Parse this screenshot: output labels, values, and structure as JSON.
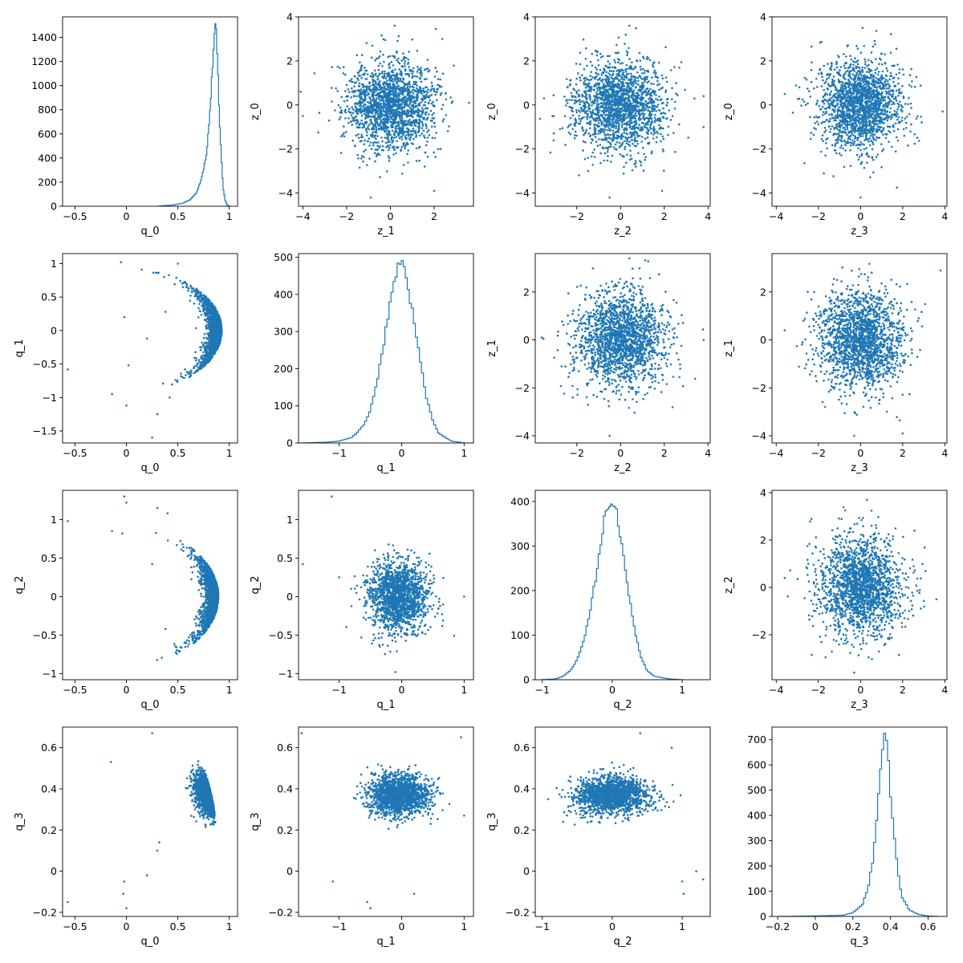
{
  "chart_data": [
    {
      "type": "histogram",
      "row": 0,
      "col": 0,
      "xlabel": "q_0",
      "ylabel": "",
      "xlim": [
        -0.62,
        1.08
      ],
      "ylim": [
        0,
        1570
      ],
      "xticks": [
        -0.5,
        0.0,
        0.5,
        1.0
      ],
      "yticks": [
        0,
        200,
        400,
        600,
        800,
        1000,
        1200,
        1400
      ],
      "hist": {
        "x": [
          0.3,
          0.45,
          0.55,
          0.62,
          0.68,
          0.72,
          0.75,
          0.78,
          0.8,
          0.82,
          0.84,
          0.86,
          0.87,
          0.88,
          0.89,
          0.9,
          0.92,
          0.94,
          0.96,
          0.98,
          1.0
        ],
        "y": [
          0,
          10,
          25,
          55,
          110,
          200,
          300,
          450,
          650,
          900,
          1200,
          1500,
          1480,
          1350,
          1100,
          800,
          450,
          150,
          50,
          10,
          0
        ]
      }
    },
    {
      "type": "scatter",
      "row": 0,
      "col": 1,
      "xlabel": "z_1",
      "ylabel": "z_0",
      "xlim": [
        -4.2,
        3.8
      ],
      "ylim": [
        -4.6,
        4.0
      ],
      "xticks": [
        -4,
        -2,
        0,
        2
      ],
      "yticks": [
        -4,
        -2,
        0,
        2,
        4
      ],
      "cloud": {
        "type": "gauss",
        "n": 1800,
        "mx": 0,
        "my": 0,
        "sx": 1.0,
        "sy": 1.0,
        "seed": 11
      },
      "outliers": [
        {
          "x": -4.1,
          "y": 0.6
        },
        {
          "x": -4.0,
          "y": -0.5
        },
        {
          "x": -0.9,
          "y": -4.2
        },
        {
          "x": 2.0,
          "y": -3.9
        },
        {
          "x": 3.6,
          "y": 0.1
        },
        {
          "x": 0.2,
          "y": 3.6
        }
      ]
    },
    {
      "type": "scatter",
      "row": 0,
      "col": 2,
      "xlabel": "z_2",
      "ylabel": "z_0",
      "xlim": [
        -3.9,
        4.1
      ],
      "ylim": [
        -4.6,
        4.0
      ],
      "xticks": [
        -2,
        0,
        2,
        4
      ],
      "yticks": [
        -4,
        -2,
        0,
        2,
        4
      ],
      "cloud": {
        "type": "gauss",
        "n": 1800,
        "mx": 0,
        "my": 0,
        "sx": 1.0,
        "sy": 1.0,
        "seed": 12
      },
      "outliers": [
        {
          "x": -3.5,
          "y": 0.3
        },
        {
          "x": 3.8,
          "y": 0.4
        },
        {
          "x": -0.5,
          "y": -4.2
        },
        {
          "x": 1.9,
          "y": -3.9
        },
        {
          "x": 0.4,
          "y": 3.6
        }
      ]
    },
    {
      "type": "scatter",
      "row": 0,
      "col": 3,
      "xlabel": "z_3",
      "ylabel": "z_0",
      "xlim": [
        -4.2,
        4.1
      ],
      "ylim": [
        -4.6,
        4.0
      ],
      "xticks": [
        -4,
        -2,
        0,
        2,
        4
      ],
      "yticks": [
        -4,
        -2,
        0,
        2,
        4
      ],
      "cloud": {
        "type": "gauss",
        "n": 1800,
        "mx": 0,
        "my": 0,
        "sx": 1.0,
        "sy": 1.0,
        "seed": 13
      },
      "outliers": [
        {
          "x": -3.6,
          "y": 0.5
        },
        {
          "x": 3.9,
          "y": -0.3
        },
        {
          "x": 0.0,
          "y": -4.2
        },
        {
          "x": 0.1,
          "y": 3.5
        }
      ]
    },
    {
      "type": "scatter",
      "row": 1,
      "col": 0,
      "xlabel": "q_0",
      "ylabel": "q_1",
      "xlim": [
        -0.62,
        1.08
      ],
      "ylim": [
        -1.68,
        1.15
      ],
      "xticks": [
        -0.5,
        0.0,
        0.5,
        1.0
      ],
      "yticks": [
        -1.5,
        -1.0,
        -0.5,
        0.0,
        0.5,
        1.0
      ],
      "cloud": {
        "type": "arc",
        "n": 1700,
        "seed": 21
      },
      "outliers": [
        {
          "x": -0.57,
          "y": -0.58
        },
        {
          "x": -0.02,
          "y": 0.2
        },
        {
          "x": -0.14,
          "y": -0.95
        },
        {
          "x": 0.0,
          "y": -1.12
        },
        {
          "x": 0.02,
          "y": -0.52
        },
        {
          "x": 0.25,
          "y": -1.6
        },
        {
          "x": 0.3,
          "y": -1.25
        },
        {
          "x": 0.38,
          "y": 0.28
        },
        {
          "x": 0.5,
          "y": 1.0
        },
        {
          "x": 0.2,
          "y": -0.12
        },
        {
          "x": 0.42,
          "y": -1.0
        }
      ]
    },
    {
      "type": "histogram",
      "row": 1,
      "col": 1,
      "xlabel": "q_1",
      "ylabel": "",
      "xlim": [
        -1.65,
        1.15
      ],
      "ylim": [
        0,
        510
      ],
      "xticks": [
        -1,
        0,
        1
      ],
      "yticks": [
        0,
        100,
        200,
        300,
        400,
        500
      ],
      "hist": {
        "x": [
          -1.6,
          -1.2,
          -1.0,
          -0.8,
          -0.7,
          -0.6,
          -0.5,
          -0.4,
          -0.3,
          -0.2,
          -0.1,
          -0.05,
          0.0,
          0.05,
          0.1,
          0.2,
          0.3,
          0.4,
          0.5,
          0.6,
          0.8,
          1.0
        ],
        "y": [
          0,
          2,
          5,
          15,
          30,
          50,
          90,
          160,
          250,
          360,
          450,
          480,
          490,
          470,
          420,
          330,
          220,
          120,
          60,
          25,
          5,
          0
        ]
      }
    },
    {
      "type": "scatter",
      "row": 1,
      "col": 2,
      "xlabel": "z_2",
      "ylabel": "z_1",
      "xlim": [
        -3.9,
        4.1
      ],
      "ylim": [
        -4.3,
        3.6
      ],
      "xticks": [
        -2,
        0,
        2,
        4
      ],
      "yticks": [
        -4,
        -2,
        0,
        2
      ],
      "cloud": {
        "type": "gauss",
        "n": 1800,
        "mx": 0,
        "my": 0,
        "sx": 1.0,
        "sy": 1.0,
        "seed": 23
      },
      "outliers": [
        {
          "x": -3.6,
          "y": 0.1
        },
        {
          "x": 3.8,
          "y": 0.0
        },
        {
          "x": -0.5,
          "y": -4.0
        },
        {
          "x": 0.4,
          "y": 3.4
        }
      ]
    },
    {
      "type": "scatter",
      "row": 1,
      "col": 3,
      "xlabel": "z_3",
      "ylabel": "z_1",
      "xlim": [
        -4.2,
        4.1
      ],
      "ylim": [
        -4.3,
        3.6
      ],
      "xticks": [
        -4,
        -2,
        0,
        2,
        4
      ],
      "yticks": [
        -4,
        -2,
        0,
        2
      ],
      "cloud": {
        "type": "gauss",
        "n": 1800,
        "mx": 0,
        "my": 0,
        "sx": 1.0,
        "sy": 1.0,
        "seed": 24
      },
      "outliers": [
        {
          "x": -3.6,
          "y": 0.4
        },
        {
          "x": 3.8,
          "y": 2.9
        },
        {
          "x": -0.3,
          "y": -4.0
        },
        {
          "x": 2.0,
          "y": -3.9
        }
      ]
    },
    {
      "type": "scatter",
      "row": 2,
      "col": 0,
      "xlabel": "q_0",
      "ylabel": "q_2",
      "xlim": [
        -0.62,
        1.08
      ],
      "ylim": [
        -1.08,
        1.38
      ],
      "xticks": [
        -0.5,
        0.0,
        0.5,
        1.0
      ],
      "yticks": [
        -1.0,
        -0.5,
        0.0,
        0.5,
        1.0
      ],
      "cloud": {
        "type": "arc2",
        "n": 1700,
        "seed": 31
      },
      "outliers": [
        {
          "x": -0.57,
          "y": 0.98
        },
        {
          "x": -0.02,
          "y": 1.3
        },
        {
          "x": 0.0,
          "y": 1.22
        },
        {
          "x": -0.14,
          "y": 0.85
        },
        {
          "x": -0.04,
          "y": 0.82
        },
        {
          "x": 0.3,
          "y": 1.15
        },
        {
          "x": 0.4,
          "y": 1.08
        },
        {
          "x": 0.25,
          "y": 0.42
        },
        {
          "x": 0.38,
          "y": -0.42
        }
      ]
    },
    {
      "type": "scatter",
      "row": 2,
      "col": 1,
      "xlabel": "q_1",
      "ylabel": "q_2",
      "xlim": [
        -1.65,
        1.15
      ],
      "ylim": [
        -1.08,
        1.38
      ],
      "xticks": [
        -1,
        0,
        1
      ],
      "yticks": [
        -1.0,
        -0.5,
        0.0,
        0.5,
        1.0
      ],
      "cloud": {
        "type": "gauss",
        "n": 1700,
        "mx": -0.05,
        "my": 0.0,
        "sx": 0.24,
        "sy": 0.22,
        "seed": 32
      },
      "outliers": [
        {
          "x": -1.58,
          "y": 0.42
        },
        {
          "x": -1.12,
          "y": 1.3
        },
        {
          "x": -1.0,
          "y": 0.25
        },
        {
          "x": 1.0,
          "y": 0.0
        },
        {
          "x": -0.1,
          "y": -0.98
        }
      ]
    },
    {
      "type": "histogram",
      "row": 2,
      "col": 2,
      "xlabel": "q_2",
      "ylabel": "",
      "xlim": [
        -1.1,
        1.4
      ],
      "ylim": [
        0,
        425
      ],
      "xticks": [
        -1,
        0,
        1
      ],
      "yticks": [
        0,
        100,
        200,
        300,
        400
      ],
      "hist": {
        "x": [
          -1.0,
          -0.8,
          -0.7,
          -0.6,
          -0.5,
          -0.4,
          -0.3,
          -0.2,
          -0.15,
          -0.1,
          -0.05,
          0.0,
          0.05,
          0.1,
          0.15,
          0.2,
          0.3,
          0.4,
          0.5,
          0.6,
          0.8,
          1.0
        ],
        "y": [
          0,
          2,
          8,
          20,
          45,
          90,
          170,
          260,
          320,
          370,
          395,
          405,
          390,
          340,
          290,
          230,
          130,
          55,
          20,
          8,
          2,
          0
        ]
      }
    },
    {
      "type": "scatter",
      "row": 2,
      "col": 3,
      "xlabel": "z_3",
      "ylabel": "z_2",
      "xlim": [
        -4.2,
        4.1
      ],
      "ylim": [
        -3.9,
        4.1
      ],
      "xticks": [
        -4,
        -2,
        0,
        2,
        4
      ],
      "yticks": [
        -2,
        0,
        2,
        4
      ],
      "cloud": {
        "type": "gauss",
        "n": 1800,
        "mx": 0,
        "my": 0,
        "sx": 1.0,
        "sy": 1.0,
        "seed": 34
      },
      "outliers": [
        {
          "x": -3.6,
          "y": 0.4
        },
        {
          "x": 3.6,
          "y": -0.5
        },
        {
          "x": -0.3,
          "y": -3.6
        },
        {
          "x": 0.3,
          "y": 3.7
        }
      ]
    },
    {
      "type": "scatter",
      "row": 3,
      "col": 0,
      "xlabel": "q_0",
      "ylabel": "q_3",
      "xlim": [
        -0.62,
        1.08
      ],
      "ylim": [
        -0.22,
        0.7
      ],
      "xticks": [
        -0.5,
        0.0,
        0.5,
        1.0
      ],
      "yticks": [
        -0.2,
        0.0,
        0.2,
        0.4,
        0.6
      ],
      "cloud": {
        "type": "tri",
        "n": 1600,
        "seed": 41
      },
      "outliers": [
        {
          "x": -0.57,
          "y": -0.15
        },
        {
          "x": -0.15,
          "y": 0.53
        },
        {
          "x": -0.02,
          "y": -0.05
        },
        {
          "x": -0.03,
          "y": -0.11
        },
        {
          "x": 0.0,
          "y": -0.18
        },
        {
          "x": 0.25,
          "y": 0.67
        },
        {
          "x": 0.2,
          "y": -0.02
        },
        {
          "x": 0.3,
          "y": 0.1
        },
        {
          "x": 0.32,
          "y": 0.14
        }
      ]
    },
    {
      "type": "scatter",
      "row": 3,
      "col": 1,
      "xlabel": "q_1",
      "ylabel": "q_3",
      "xlim": [
        -1.65,
        1.15
      ],
      "ylim": [
        -0.22,
        0.7
      ],
      "xticks": [
        -1,
        0,
        1
      ],
      "yticks": [
        -0.2,
        0.0,
        0.2,
        0.4,
        0.6
      ],
      "cloud": {
        "type": "gauss",
        "n": 1700,
        "mx": -0.05,
        "my": 0.37,
        "sx": 0.24,
        "sy": 0.05,
        "seed": 42
      },
      "outliers": [
        {
          "x": -1.6,
          "y": 0.67
        },
        {
          "x": -1.1,
          "y": -0.05
        },
        {
          "x": -0.55,
          "y": -0.15
        },
        {
          "x": -0.5,
          "y": -0.18
        },
        {
          "x": 0.2,
          "y": -0.11
        },
        {
          "x": 0.95,
          "y": 0.65
        },
        {
          "x": 1.0,
          "y": 0.27
        }
      ]
    },
    {
      "type": "scatter",
      "row": 3,
      "col": 2,
      "xlabel": "q_2",
      "ylabel": "q_3",
      "xlim": [
        -1.1,
        1.4
      ],
      "ylim": [
        -0.22,
        0.7
      ],
      "xticks": [
        -1,
        0,
        1
      ],
      "yticks": [
        -0.2,
        0.0,
        0.2,
        0.4,
        0.6
      ],
      "cloud": {
        "type": "hump",
        "n": 1700,
        "seed": 43
      },
      "outliers": [
        {
          "x": 1.0,
          "y": -0.05
        },
        {
          "x": 1.02,
          "y": -0.11
        },
        {
          "x": 1.3,
          "y": -0.04
        },
        {
          "x": 1.2,
          "y": 0.0
        },
        {
          "x": 0.4,
          "y": 0.67
        },
        {
          "x": 0.85,
          "y": 0.6
        }
      ]
    },
    {
      "type": "histogram",
      "row": 3,
      "col": 3,
      "xlabel": "q_3",
      "ylabel": "",
      "xlim": [
        -0.23,
        0.7
      ],
      "ylim": [
        0,
        750
      ],
      "xticks": [
        -0.2,
        0.0,
        0.2,
        0.4,
        0.6
      ],
      "yticks": [
        0,
        100,
        200,
        300,
        400,
        500,
        600,
        700
      ],
      "hist": {
        "x": [
          -0.2,
          0.0,
          0.15,
          0.2,
          0.25,
          0.28,
          0.31,
          0.33,
          0.35,
          0.36,
          0.37,
          0.38,
          0.39,
          0.4,
          0.42,
          0.44,
          0.46,
          0.5,
          0.55,
          0.6,
          0.65
        ],
        "y": [
          0,
          2,
          5,
          15,
          45,
          110,
          240,
          420,
          600,
          690,
          715,
          680,
          600,
          480,
          320,
          170,
          80,
          25,
          8,
          2,
          0
        ]
      }
    }
  ],
  "style": {
    "series_color": "#1f77b4"
  }
}
